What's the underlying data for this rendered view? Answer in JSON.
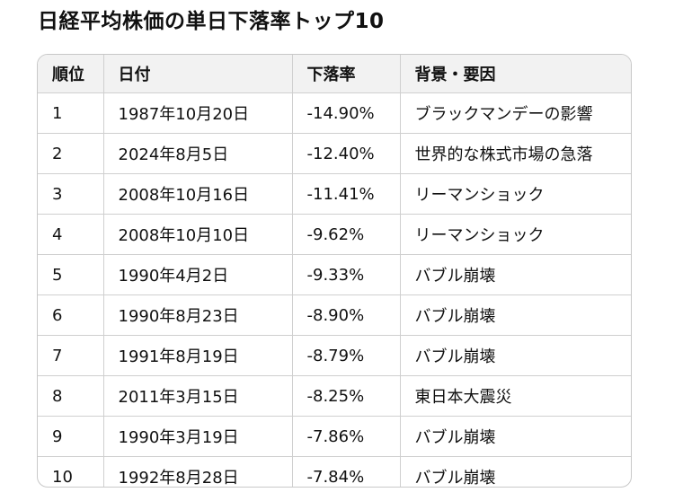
{
  "title": "日経平均株価の単日下落率トップ10",
  "table": {
    "headers": [
      "順位",
      "日付",
      "下落率",
      "背景・要因"
    ],
    "rows": [
      {
        "rank": "1",
        "date": "1987年10月20日",
        "rate": "-14.90%",
        "cause": "ブラックマンデーの影響"
      },
      {
        "rank": "2",
        "date": "2024年8月5日",
        "rate": "-12.40%",
        "cause": "世界的な株式市場の急落"
      },
      {
        "rank": "3",
        "date": "2008年10月16日",
        "rate": "-11.41%",
        "cause": "リーマンショック"
      },
      {
        "rank": "4",
        "date": "2008年10月10日",
        "rate": "-9.62%",
        "cause": "リーマンショック"
      },
      {
        "rank": "5",
        "date": "1990年4月2日",
        "rate": "-9.33%",
        "cause": "バブル崩壊"
      },
      {
        "rank": "6",
        "date": "1990年8月23日",
        "rate": "-8.90%",
        "cause": "バブル崩壊"
      },
      {
        "rank": "7",
        "date": "1991年8月19日",
        "rate": "-8.79%",
        "cause": "バブル崩壊"
      },
      {
        "rank": "8",
        "date": "2011年3月15日",
        "rate": "-8.25%",
        "cause": "東日本大震災"
      },
      {
        "rank": "9",
        "date": "1990年3月19日",
        "rate": "-7.86%",
        "cause": "バブル崩壊"
      },
      {
        "rank": "10",
        "date": "1992年8月28日",
        "rate": "-7.84%",
        "cause": "バブル崩壊"
      }
    ]
  }
}
